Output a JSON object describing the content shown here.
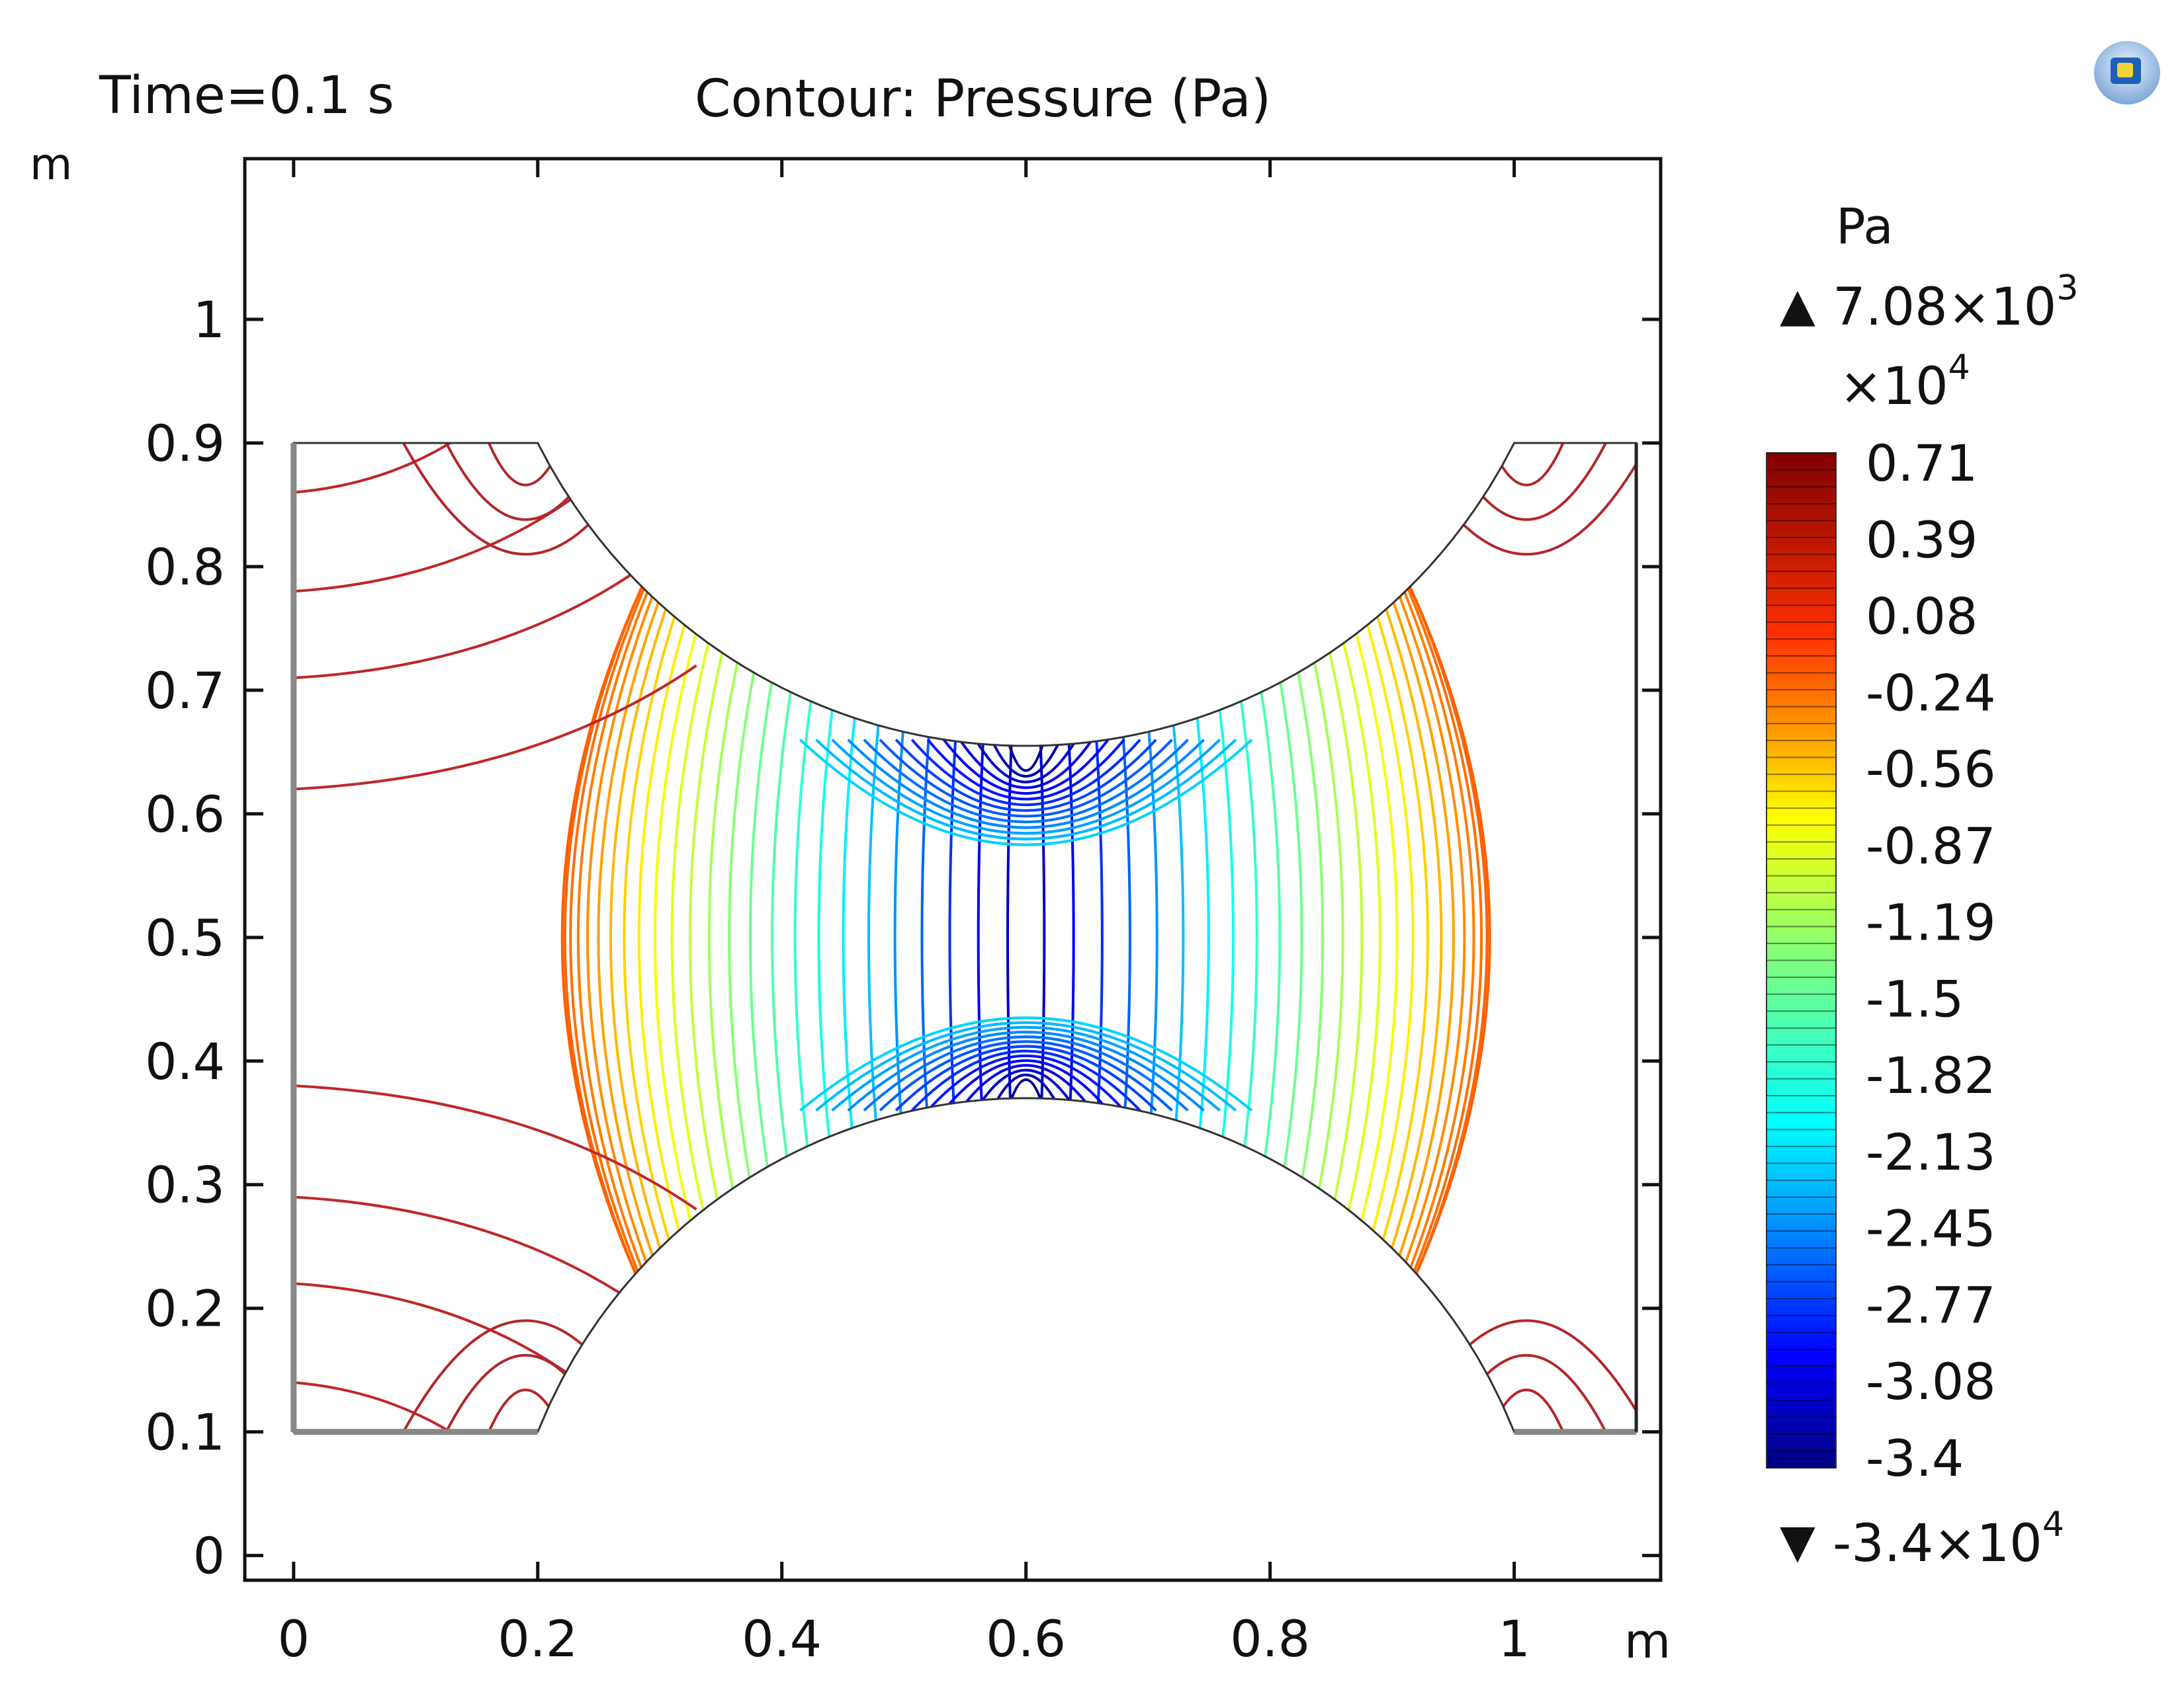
{
  "header": {
    "time_label": "Time=0.1 s",
    "plot_title": "Contour: Pressure (Pa)"
  },
  "axes": {
    "y_unit": "m",
    "x_unit": "m"
  },
  "colorbar": {
    "unit": "Pa",
    "max_label": "7.08×10",
    "max_exp": "3",
    "multiplier": "×10",
    "multiplier_exp": "4",
    "min_label": "-3.4×10",
    "min_exp": "4",
    "ticks": [
      "0.71",
      "0.39",
      "0.08",
      "-0.24",
      "-0.56",
      "-0.87",
      "-1.19",
      "-1.5",
      "-1.82",
      "-2.13",
      "-2.45",
      "-2.77",
      "-3.08",
      "-3.4"
    ],
    "max_arrow": "▲",
    "min_arrow": "▼"
  },
  "logo": {
    "icon": "comsol-logo-icon"
  },
  "chart_data": {
    "type": "contour",
    "title": "Contour: Pressure (Pa)",
    "subtitle": "Time=0.1 s",
    "xlabel": "m",
    "ylabel": "m",
    "xlim": [
      -0.04,
      1.12
    ],
    "ylim": [
      -0.02,
      1.13
    ],
    "xticks": [
      0,
      0.2,
      0.4,
      0.6,
      0.8,
      1
    ],
    "xtick_labels": [
      "0",
      "0.2",
      "0.4",
      "0.6",
      "0.8",
      "1"
    ],
    "yticks": [
      0,
      0.1,
      0.2,
      0.3,
      0.4,
      0.5,
      0.6,
      0.7,
      0.8,
      0.9,
      1
    ],
    "ytick_labels": [
      "0",
      "0.1",
      "0.2",
      "0.3",
      "0.4",
      "0.5",
      "0.6",
      "0.7",
      "0.8",
      "0.9",
      "1"
    ],
    "domain": {
      "x_range": [
        0,
        1.1
      ],
      "y_range": [
        0.1,
        0.9
      ],
      "throat_center_x": 0.6,
      "throat_top_y": 0.655,
      "throat_bottom_y": 0.37,
      "arc_start_x": 0.2,
      "arc_end_x": 1.0
    },
    "value_range": [
      -34000,
      7080
    ],
    "value_unit": "Pa",
    "colorbar_scale": 10000,
    "colormap": "rainbow",
    "contour_levels": 50
  }
}
